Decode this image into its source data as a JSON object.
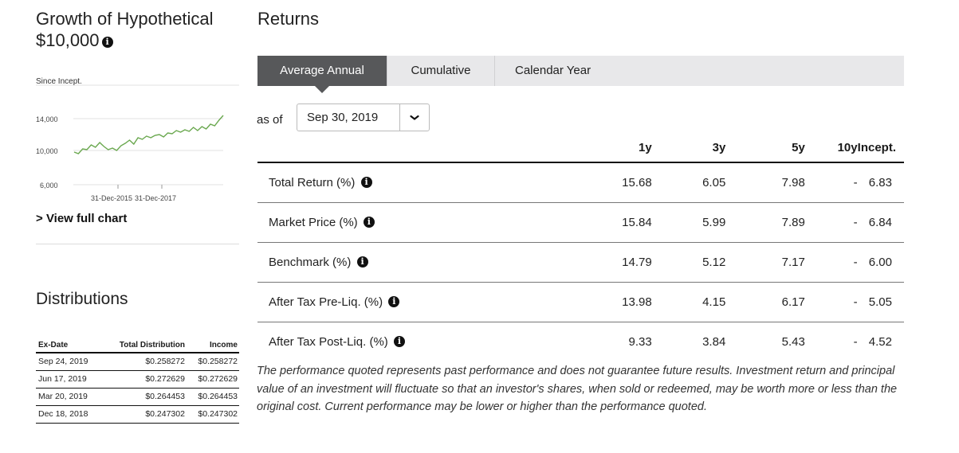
{
  "growth": {
    "title": "Growth of Hypothetical $10,000",
    "since_label": "Since Incept.",
    "y_ticks": [
      "14,000",
      "10,000",
      "6,000"
    ],
    "x_ticks": [
      "31-Dec-2015",
      "31-Dec-2017"
    ],
    "view_full_chart": "View full chart",
    "line_color": "#6aa84f"
  },
  "chart_data": {
    "type": "line",
    "title": "Growth of Hypothetical $10,000",
    "xlabel": "",
    "ylabel": "",
    "ylim": [
      6000,
      15000
    ],
    "x_tick_labels": [
      "31-Dec-2015",
      "31-Dec-2017"
    ],
    "y_tick_labels": [
      "6,000",
      "10,000",
      "14,000"
    ],
    "series": [
      {
        "name": "Growth of $10,000",
        "values": [
          9800,
          9600,
          10200,
          10100,
          10700,
          10400,
          11000,
          10500,
          10100,
          10300,
          10000,
          10600,
          10900,
          11300,
          10800,
          11600,
          11400,
          11800,
          11600,
          11900,
          12000,
          11700,
          12200,
          12100,
          12500,
          12300,
          12600,
          12400,
          12900,
          12500,
          13000,
          12700,
          13300,
          13100,
          13800,
          14400
        ]
      }
    ]
  },
  "distributions": {
    "title": "Distributions",
    "headers": [
      "Ex-Date",
      "Total Distribution",
      "Income"
    ],
    "rows": [
      [
        "Sep 24, 2019",
        "$0.258272",
        "$0.258272"
      ],
      [
        "Jun 17, 2019",
        "$0.272629",
        "$0.272629"
      ],
      [
        "Mar 20, 2019",
        "$0.264453",
        "$0.264453"
      ],
      [
        "Dec 18, 2018",
        "$0.247302",
        "$0.247302"
      ]
    ]
  },
  "returns": {
    "title": "Returns",
    "tabs": [
      "Average Annual",
      "Cumulative",
      "Calendar Year"
    ],
    "as_of_label": "as of",
    "as_of_date": "Sep 30, 2019",
    "columns": [
      "",
      "1y",
      "3y",
      "5y",
      "10y",
      "Incept."
    ],
    "rows": [
      {
        "label": "Total Return (%)",
        "values": [
          "15.68",
          "6.05",
          "7.98",
          "-",
          "6.83"
        ]
      },
      {
        "label": "Market Price (%)",
        "values": [
          "15.84",
          "5.99",
          "7.89",
          "-",
          "6.84"
        ]
      },
      {
        "label": "Benchmark (%)",
        "values": [
          "14.79",
          "5.12",
          "7.17",
          "-",
          "6.00"
        ]
      },
      {
        "label": "After Tax Pre-Liq. (%)",
        "values": [
          "13.98",
          "4.15",
          "6.17",
          "-",
          "5.05"
        ]
      },
      {
        "label": "After Tax Post-Liq. (%)",
        "values": [
          "9.33",
          "3.84",
          "5.43",
          "-",
          "4.52"
        ]
      }
    ],
    "disclaimer": "The performance quoted represents past performance and does not guarantee future results. Investment return and principal value of an investment will fluctuate so that an investor's shares, when sold or redeemed, may be worth more or less than the original cost. Current performance may be lower or higher than the performance quoted."
  }
}
